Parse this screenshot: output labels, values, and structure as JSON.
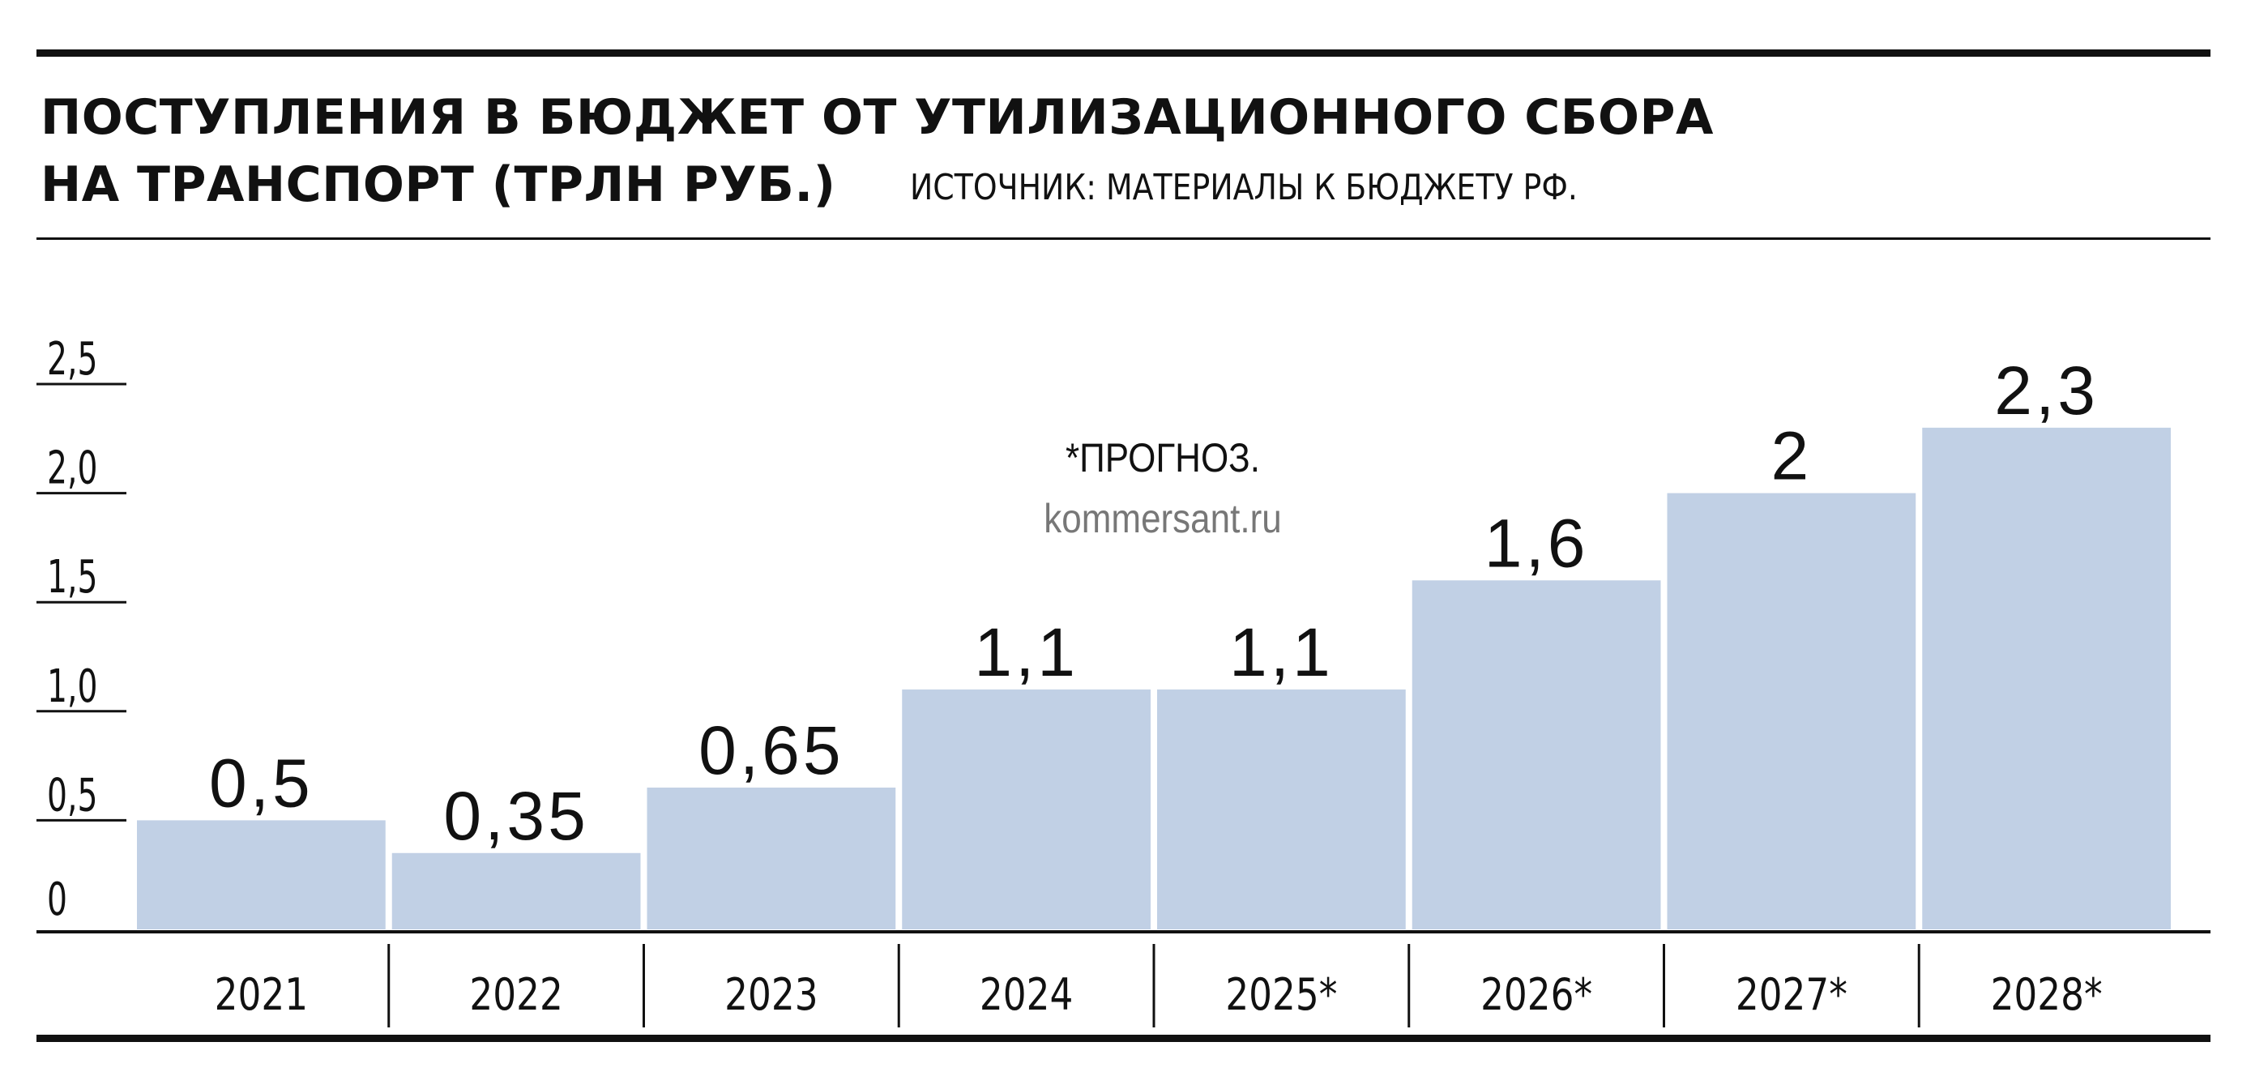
{
  "title_line1": "ПОСТУПЛЕНИЯ В БЮДЖЕТ ОТ УТИЛИЗАЦИОННОГО СБОРА",
  "title_line2": "НА ТРАНСПОРТ (ТРЛН РУБ.)",
  "source": "ИСТОЧНИК: МАТЕРИАЛЫ К БЮДЖЕТУ РФ.",
  "note": "*ПРОГНОЗ.",
  "watermark": "kommersant.ru",
  "colors": {
    "bar": "#c1d0e5",
    "ink": "#111111",
    "watermark": "#777777"
  },
  "chart_data": {
    "type": "bar",
    "title": "ПОСТУПЛЕНИЯ В БЮДЖЕТ ОТ УТИЛИЗАЦИОННОГО СБОРА НА ТРАНСПОРТ (ТРЛН РУБ.)",
    "categories": [
      "2021",
      "2022",
      "2023",
      "2024",
      "2025*",
      "2026*",
      "2027*",
      "2028*"
    ],
    "values": [
      0.5,
      0.35,
      0.65,
      1.1,
      1.1,
      1.6,
      2,
      2.3
    ],
    "value_labels": [
      "0,5",
      "0,35",
      "0,65",
      "1,1",
      "1,1",
      "1,6",
      "2",
      "2,3"
    ],
    "y_ticks": [
      0,
      0.5,
      1.0,
      1.5,
      2.0,
      2.5
    ],
    "y_tick_labels": [
      "0",
      "0,5",
      "1,0",
      "1,5",
      "2,0",
      "2,5"
    ],
    "ylim": [
      0,
      2.5
    ],
    "xlabel": "",
    "ylabel": "",
    "grid": false,
    "legend": "none"
  }
}
